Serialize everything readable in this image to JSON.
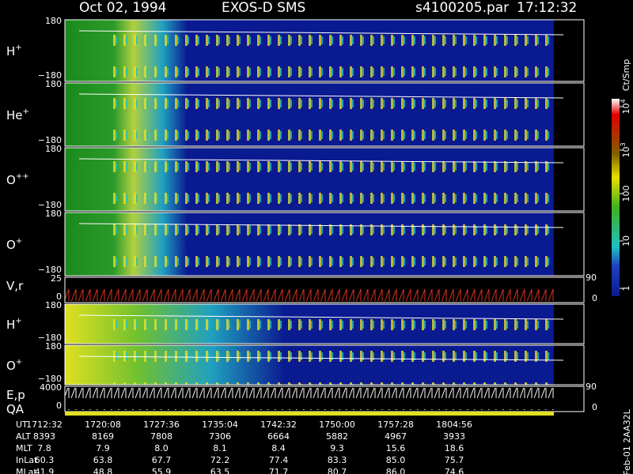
{
  "header": {
    "date": "Oct 02, 1994",
    "instrument": "EXOS-D SMS",
    "file": "s4100205.par",
    "time": "17:12:32"
  },
  "panels": [
    {
      "label": "H",
      "sup": "+",
      "top": "180",
      "bottom": "−180"
    },
    {
      "label": "He",
      "sup": "+",
      "top": "180",
      "bottom": "−180"
    },
    {
      "label": "O",
      "sup": "++",
      "top": "180",
      "bottom": "−180"
    },
    {
      "label": "O",
      "sup": "+",
      "top": "180",
      "bottom": "−180"
    },
    {
      "label": "V,r",
      "top": "25",
      "bottom": "0",
      "right_top": "90",
      "right_bottom": "0"
    },
    {
      "label": "H",
      "sup": "+",
      "top": "180",
      "bottom": "−180"
    },
    {
      "label": "O",
      "sup": "+",
      "top": "180",
      "bottom": "−180"
    },
    {
      "label": "E,p",
      "label2": "QA",
      "top": "4000",
      "bottom": "0",
      "right_top": "90",
      "right_bottom": "0"
    }
  ],
  "colorbar": {
    "unit": "Ct/Smp",
    "ticks": [
      {
        "base": "10",
        "exp": "4"
      },
      {
        "base": "10",
        "exp": "3"
      },
      "100",
      "10",
      "1"
    ]
  },
  "footer": "Feb-01 2AA32L",
  "table": {
    "rows": [
      [
        "UT",
        "1712:32",
        "1720:08",
        "1727:36",
        "1735:04",
        "1742:32",
        "1750:00",
        "1757:28",
        "1804:56"
      ],
      [
        "ALT",
        "8393",
        "8169",
        "7808",
        "7306",
        "6664",
        "5882",
        "4967",
        "3933"
      ],
      [
        "MLT",
        "7.8",
        "7.9",
        "8.0",
        "8.1",
        "8.4",
        "9.3",
        "15.6",
        "18.6"
      ],
      [
        "InLat",
        "60.3",
        "63.8",
        "67.7",
        "72.2",
        "77.4",
        "83.3",
        "85.0",
        "75.7"
      ],
      [
        "MLat",
        "41.9",
        "48.8",
        "55.9",
        "63.5",
        "71.7",
        "80.7",
        "86.0",
        "74.6"
      ]
    ]
  }
}
